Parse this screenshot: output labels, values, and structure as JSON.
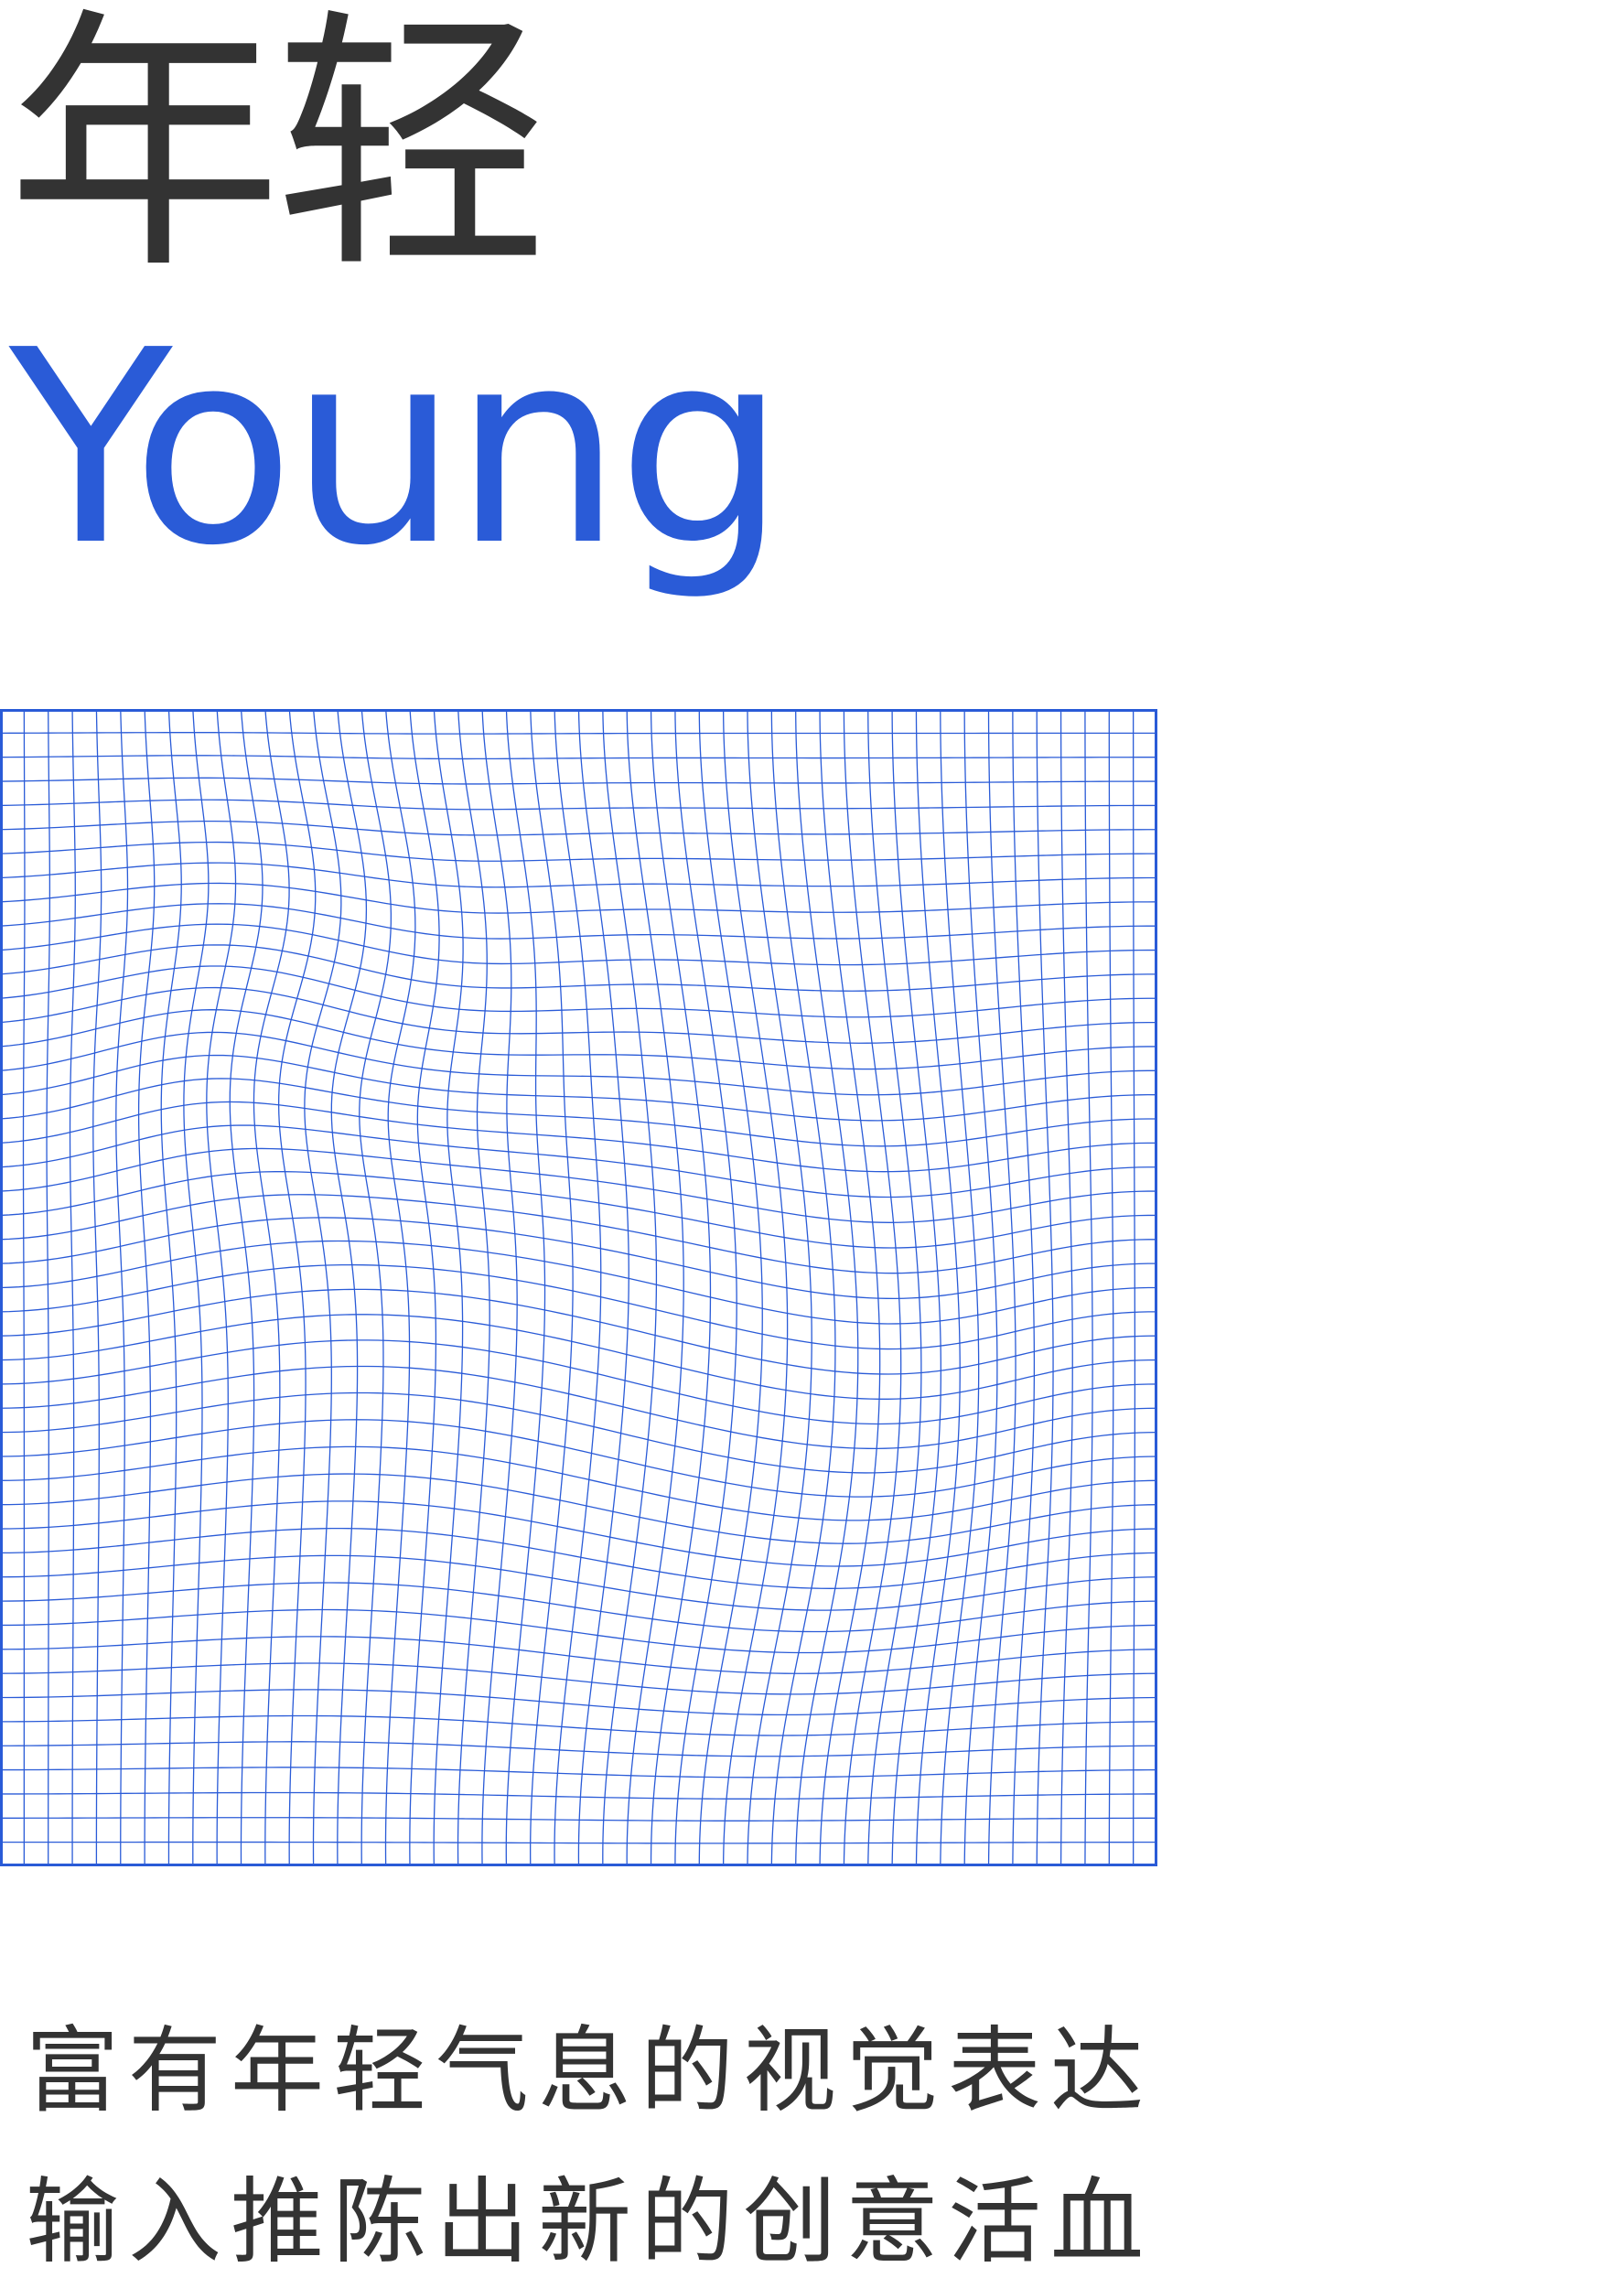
{
  "title": {
    "chinese": "年轻",
    "english": "Young"
  },
  "tagline": {
    "line1": "富有年轻气息的视觉表达",
    "line2": "输入推陈出新的创意活血"
  },
  "graphic": {
    "type": "warped-grid",
    "divisions": 48
  },
  "colors": {
    "text_dark": "#333333",
    "accent_blue": "#2a5bd7",
    "background": "#ffffff"
  }
}
